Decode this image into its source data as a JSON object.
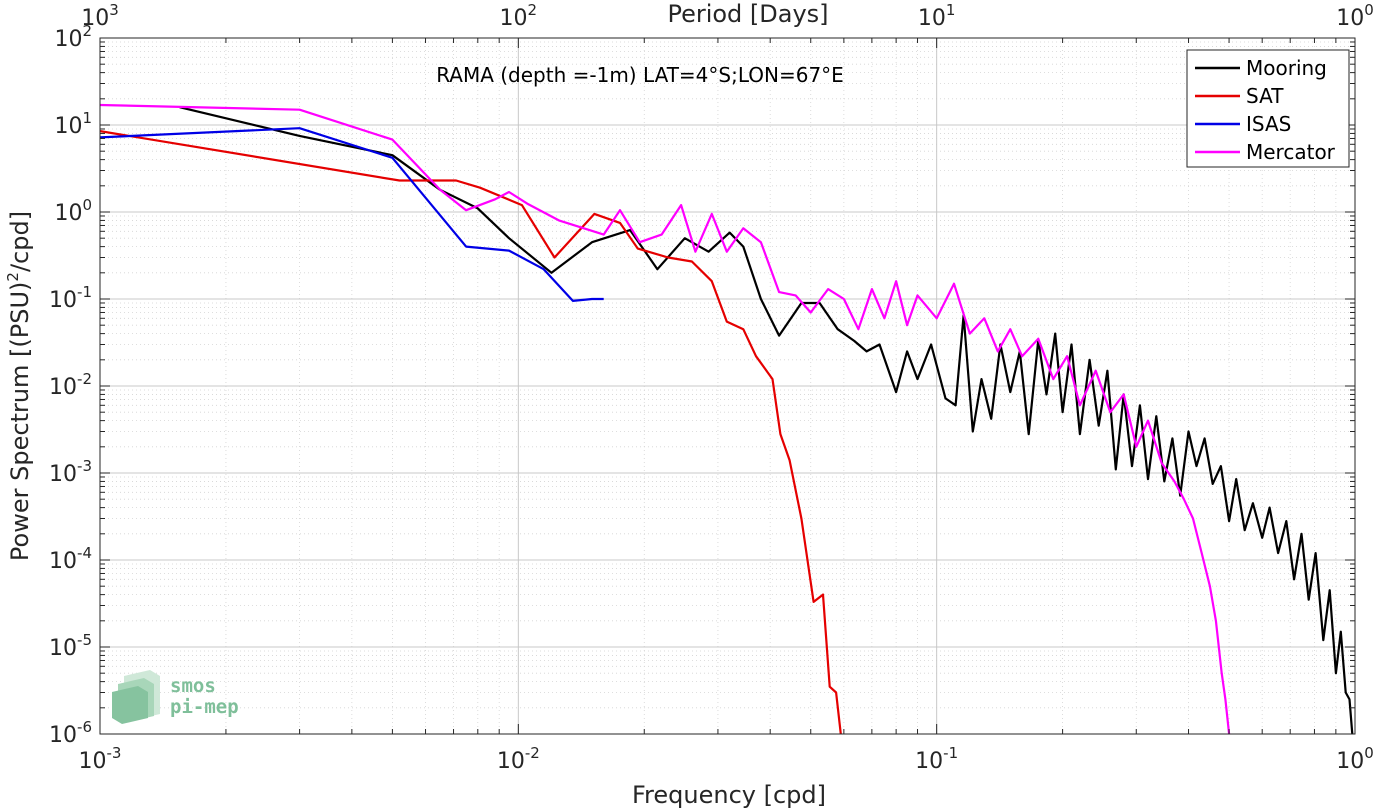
{
  "chart_data": {
    "type": "line",
    "title": "RAMA (depth =-1m) LAT=4°S;LON=67°E",
    "xlabel": "Frequency [cpd]",
    "ylabel": "Power Spectrum [(PSU)^2/cpd]",
    "ylabel_parts": {
      "before": "Power Spectrum [(PSU)",
      "sup": "2",
      "after": "/cpd]"
    },
    "top_xlabel": "Period [Days]",
    "x_scale": "log",
    "y_scale": "log",
    "xlim": [
      0.001,
      1
    ],
    "ylim": [
      1e-06,
      100
    ],
    "grid": true,
    "minor_grid": true,
    "legend_position": "top-right",
    "x_ticks": [
      {
        "value": 0.001,
        "base": "10",
        "exp": "-3"
      },
      {
        "value": 0.01,
        "base": "10",
        "exp": "-2"
      },
      {
        "value": 0.1,
        "base": "10",
        "exp": "-1"
      },
      {
        "value": 1,
        "base": "10",
        "exp": "0"
      }
    ],
    "y_ticks": [
      {
        "value": 1e-06,
        "base": "10",
        "exp": "-6"
      },
      {
        "value": 1e-05,
        "base": "10",
        "exp": "-5"
      },
      {
        "value": 0.0001,
        "base": "10",
        "exp": "-4"
      },
      {
        "value": 0.001,
        "base": "10",
        "exp": "-3"
      },
      {
        "value": 0.01,
        "base": "10",
        "exp": "-2"
      },
      {
        "value": 0.1,
        "base": "10",
        "exp": "-1"
      },
      {
        "value": 1,
        "base": "10",
        "exp": "0"
      },
      {
        "value": 10,
        "base": "10",
        "exp": "1"
      },
      {
        "value": 100,
        "base": "10",
        "exp": "2"
      }
    ],
    "top_ticks": [
      {
        "freq": 0.001,
        "base": "10",
        "exp": "3"
      },
      {
        "freq": 0.01,
        "base": "10",
        "exp": "2"
      },
      {
        "freq": 0.1,
        "base": "10",
        "exp": "1"
      },
      {
        "freq": 1,
        "base": "10",
        "exp": "0"
      }
    ],
    "series": [
      {
        "name": "Mooring",
        "color": "#000000",
        "x": [
          0.00155,
          0.003,
          0.005,
          0.0065,
          0.008,
          0.0095,
          0.012,
          0.015,
          0.0185,
          0.0215,
          0.025,
          0.0285,
          0.032,
          0.0345,
          0.038,
          0.042,
          0.0475,
          0.0525,
          0.058,
          0.0635,
          0.068,
          0.073,
          0.08,
          0.085,
          0.09,
          0.097,
          0.105,
          0.111,
          0.116,
          0.122,
          0.128,
          0.135,
          0.142,
          0.15,
          0.158,
          0.166,
          0.175,
          0.183,
          0.192,
          0.2,
          0.21,
          0.22,
          0.232,
          0.244,
          0.256,
          0.268,
          0.28,
          0.293,
          0.306,
          0.32,
          0.335,
          0.35,
          0.366,
          0.382,
          0.4,
          0.418,
          0.437,
          0.457,
          0.478,
          0.5,
          0.52,
          0.545,
          0.57,
          0.6,
          0.625,
          0.655,
          0.685,
          0.715,
          0.745,
          0.775,
          0.805,
          0.84,
          0.87,
          0.9,
          0.925,
          0.95,
          0.97,
          0.985
        ],
        "y": [
          16,
          7.5,
          4.5,
          1.8,
          1.1,
          0.5,
          0.2,
          0.45,
          0.62,
          0.22,
          0.5,
          0.35,
          0.58,
          0.4,
          0.1,
          0.038,
          0.09,
          0.09,
          0.045,
          0.033,
          0.025,
          0.03,
          0.0085,
          0.025,
          0.012,
          0.03,
          0.0072,
          0.006,
          0.065,
          0.003,
          0.012,
          0.0042,
          0.03,
          0.0085,
          0.025,
          0.0028,
          0.034,
          0.008,
          0.04,
          0.005,
          0.03,
          0.0028,
          0.02,
          0.0035,
          0.015,
          0.0011,
          0.008,
          0.0012,
          0.006,
          0.00085,
          0.0045,
          0.0008,
          0.0025,
          0.00055,
          0.003,
          0.0012,
          0.0025,
          0.00075,
          0.0012,
          0.00028,
          0.00085,
          0.00022,
          0.00045,
          0.00018,
          0.0004,
          0.00012,
          0.00028,
          6e-05,
          0.0002,
          3.5e-05,
          0.00012,
          1.2e-05,
          4.5e-05,
          5e-06,
          1.5e-05,
          3e-06,
          2.5e-06,
          1e-06
        ]
      },
      {
        "name": "SAT",
        "color": "#e50000",
        "x": [
          0.001,
          0.0052,
          0.0071,
          0.0081,
          0.0102,
          0.0122,
          0.0152,
          0.0175,
          0.0193,
          0.0228,
          0.026,
          0.029,
          0.0315,
          0.0345,
          0.037,
          0.0405,
          0.0423,
          0.0445,
          0.0475,
          0.0508,
          0.0535,
          0.0555,
          0.0575,
          0.059
        ],
        "y": [
          8.5,
          2.3,
          2.3,
          1.9,
          1.2,
          0.3,
          0.95,
          0.75,
          0.38,
          0.3,
          0.27,
          0.16,
          0.055,
          0.045,
          0.022,
          0.012,
          0.0028,
          0.0014,
          0.0003,
          3.3e-05,
          4e-05,
          3.5e-06,
          3e-06,
          1e-06
        ]
      },
      {
        "name": "ISAS",
        "color": "#0000e6",
        "x": [
          0.001,
          0.003,
          0.005,
          0.0075,
          0.0095,
          0.0115,
          0.0135,
          0.015,
          0.016
        ],
        "y": [
          7.2,
          9.2,
          4.2,
          0.4,
          0.36,
          0.22,
          0.095,
          0.1,
          0.1
        ]
      },
      {
        "name": "Mercator",
        "color": "#ff00ff",
        "x": [
          0.001,
          0.003,
          0.005,
          0.0065,
          0.0075,
          0.0088,
          0.0095,
          0.0105,
          0.0125,
          0.016,
          0.0175,
          0.0195,
          0.022,
          0.0245,
          0.0265,
          0.029,
          0.0315,
          0.0345,
          0.038,
          0.042,
          0.046,
          0.05,
          0.055,
          0.06,
          0.065,
          0.07,
          0.075,
          0.08,
          0.085,
          0.09,
          0.1,
          0.11,
          0.12,
          0.13,
          0.14,
          0.15,
          0.16,
          0.175,
          0.19,
          0.205,
          0.22,
          0.24,
          0.26,
          0.28,
          0.3,
          0.32,
          0.345,
          0.37,
          0.39,
          0.41,
          0.43,
          0.45,
          0.465,
          0.48,
          0.49,
          0.5
        ],
        "y": [
          17,
          15,
          6.8,
          1.8,
          1.05,
          1.4,
          1.7,
          1.25,
          0.8,
          0.55,
          1.05,
          0.45,
          0.55,
          1.2,
          0.35,
          0.95,
          0.35,
          0.65,
          0.45,
          0.12,
          0.11,
          0.07,
          0.13,
          0.1,
          0.045,
          0.13,
          0.06,
          0.16,
          0.05,
          0.11,
          0.06,
          0.15,
          0.04,
          0.06,
          0.025,
          0.045,
          0.022,
          0.035,
          0.012,
          0.022,
          0.006,
          0.015,
          0.005,
          0.008,
          0.002,
          0.004,
          0.0013,
          0.0008,
          0.0005,
          0.0003,
          0.00012,
          5e-05,
          2e-05,
          5e-06,
          2.5e-06,
          1e-06
        ]
      }
    ]
  },
  "logo": {
    "line1": "smos",
    "line2": "pi-mep"
  }
}
